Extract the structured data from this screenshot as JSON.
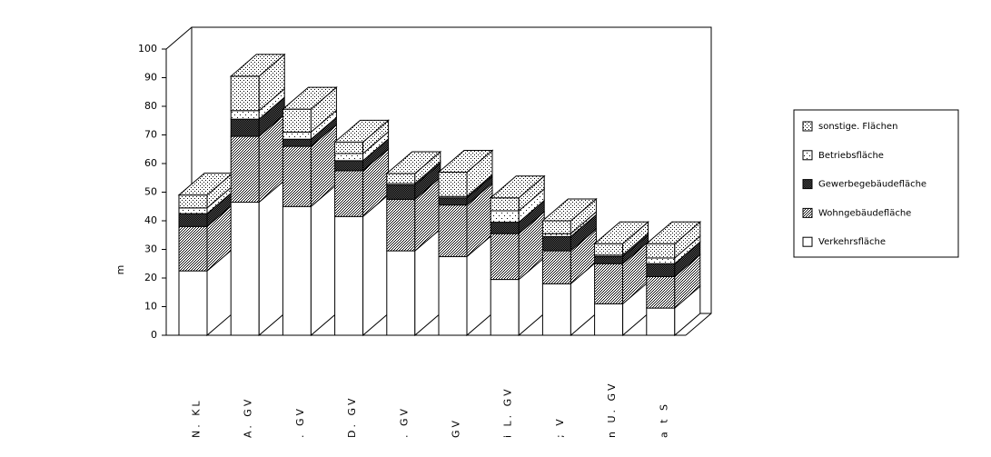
{
  "chart_data": {
    "type": "bar3d_stacked",
    "y_label": "m",
    "categories": [
      "N. KL",
      "A. GV",
      ". GV",
      "D. GV",
      ". GV",
      "GV",
      "i L. GV",
      "; V",
      "n U. GV",
      "a t S"
    ],
    "series": [
      {
        "name": "Verkehrsfläche",
        "color": "#ffffff",
        "pattern": "none",
        "values": [
          22.5,
          46.5,
          45,
          41.5,
          29.5,
          27.5,
          19.5,
          18,
          11,
          9.5
        ]
      },
      {
        "name": "Wohngebäudefläche",
        "color": "#ffffff",
        "pattern": "dense",
        "values": [
          15.5,
          23,
          21,
          16,
          18,
          18,
          16,
          11.5,
          14,
          11
        ]
      },
      {
        "name": "Gewerbegebäudefläche",
        "color": "#555555",
        "pattern": "dark",
        "values": [
          4.5,
          6,
          2.5,
          3.5,
          5,
          2.5,
          4,
          5,
          2.5,
          4.5
        ]
      },
      {
        "name": "Betriebsfläche",
        "color": "#ffffff",
        "pattern": "sparse",
        "values": [
          2,
          3,
          2.5,
          2.5,
          0.5,
          0.5,
          4,
          1,
          0.5,
          2
        ]
      },
      {
        "name": "sonstige. Flächen",
        "color": "#ffffff",
        "pattern": "medium",
        "values": [
          4.5,
          12,
          8,
          4,
          3.5,
          8.5,
          4.5,
          4.5,
          4,
          5
        ]
      }
    ],
    "ylim": [
      0,
      100
    ],
    "yticks": [
      0,
      10,
      20,
      30,
      40,
      50,
      60,
      70,
      80,
      90,
      100
    ]
  }
}
